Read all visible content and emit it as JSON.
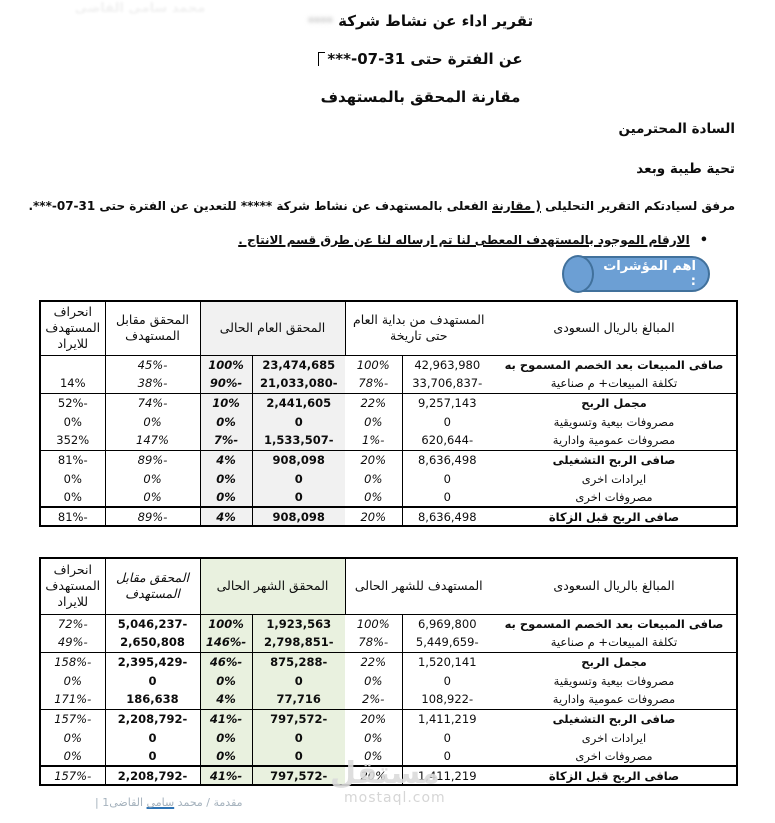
{
  "document": {
    "watermark_top": "محمد سامى القاضى",
    "title_line1": "تقرير اداء عن نشاط شركة",
    "title_redacted": "****",
    "title_line2": "عن الفترة حتى 31-07-***",
    "title_line3": "مقارنة المحقق بالمستهدف",
    "greeting_line1": "السادة المحترمين",
    "greeting_line2": "تحية طيبة وبعد",
    "intro_pre": "مرفق لسيادتكم التقرير التحليلى ",
    "intro_underlined": "( مقارنة",
    "intro_post": " الفعلى بالمستهدف عن نشاط شركة ***** للتعدين عن الفترة حتى 31-07-***.",
    "bullet_marker": "•",
    "bullet_text": "الارقام الموجود بالمستهدف المعطى لنا تم ارساله لنا  عن طرق قسم الانتاج .",
    "indicators_badge": "اهم المؤشرات :",
    "footer_pre": "مقدمة / محمد ",
    "footer_name": "سامى",
    "footer_post": " القاضى1 |",
    "watermark_brand_arabic": "مستقل",
    "watermark_brand_domain": "mostaql.com"
  },
  "colors": {
    "badge_fill": "#6c9fd4",
    "badge_border": "#41719c",
    "achieved_highlight_yearly": "#f1f1f1",
    "achieved_highlight_monthly": "#e9f1df",
    "footer_text": "#a5b2bd",
    "footer_link_underline": "#2e74b5",
    "watermark_gray": "#dbdbdb"
  },
  "tables": [
    {
      "name": "yearly-comparison",
      "headers": {
        "label": "المبالغ بالريال السعودى",
        "target": "المستهدف من بداية العام حتى تاريخة",
        "achieved": "المحقق العام الحالى",
        "vs": "المحقق مقابل المستهدف",
        "deviation": "انحراف المستهدف للايراد"
      },
      "rows": [
        {
          "label": "صافى المبيعات بعد الخصم المسموح به",
          "bold": true,
          "target": "42,963,980",
          "target_pct": "100%",
          "achieved": "23,474,685",
          "achieved_pct": "100%",
          "vs": "-45%",
          "dev": ""
        },
        {
          "label": "تكلفة المبيعات+ م صناعية",
          "bold": false,
          "target": "-33,706,837",
          "target_pct": "-78%",
          "achieved": "-21,033,080",
          "achieved_pct": "-90%",
          "vs": "-38%",
          "dev": "14%"
        },
        {
          "label": "مجمل الربح",
          "bold": true,
          "sep": true,
          "target": "9,257,143",
          "target_pct": "22%",
          "achieved": "2,441,605",
          "achieved_pct": "10%",
          "vs": "-74%",
          "dev": "-52%"
        },
        {
          "label": "مصروفات بيعية وتسويقية",
          "bold": false,
          "target": "0",
          "target_pct": "0%",
          "achieved": "0",
          "achieved_pct": "0%",
          "vs": "0%",
          "dev": "0%"
        },
        {
          "label": "مصروفات عمومية وادارية",
          "bold": false,
          "target": "-620,644",
          "target_pct": "-1%",
          "achieved": "-1,533,507",
          "achieved_pct": "-7%",
          "vs": "147%",
          "dev": "352%"
        },
        {
          "label": "صافى الربح التشغيلى",
          "bold": true,
          "sep": true,
          "target": "8,636,498",
          "target_pct": "20%",
          "achieved": "908,098",
          "achieved_pct": "4%",
          "vs": "-89%",
          "dev": "-81%"
        },
        {
          "label": "ايرادات اخرى",
          "bold": false,
          "target": "0",
          "target_pct": "0%",
          "achieved": "0",
          "achieved_pct": "0%",
          "vs": "0%",
          "dev": "0%"
        },
        {
          "label": "مصروفات اخرى",
          "bold": false,
          "target": "0",
          "target_pct": "0%",
          "achieved": "0",
          "achieved_pct": "0%",
          "vs": "0%",
          "dev": "0%"
        },
        {
          "label": "صافى الربح قبل الزكاة",
          "bold": true,
          "final": true,
          "target": "8,636,498",
          "target_pct": "20%",
          "achieved": "908,098",
          "achieved_pct": "4%",
          "vs": "-89%",
          "dev": "-81%"
        }
      ]
    },
    {
      "name": "monthly-comparison",
      "headers": {
        "label": "المبالغ بالريال السعودى",
        "target": "المستهدف للشهر الحالى",
        "achieved": "المحقق الشهر الحالى",
        "vs": "المحقق مقابل المستهدف",
        "deviation": "انحراف المستهدف للايراد"
      },
      "rows": [
        {
          "label": "صافى المبيعات بعد الخصم المسموح به",
          "bold": true,
          "target": "6,969,800",
          "target_pct": "100%",
          "achieved": "1,923,563",
          "achieved_pct": "100%",
          "vs": "-5,046,237",
          "dev": "-72%"
        },
        {
          "label": "تكلفة المبيعات+ م صناعية",
          "bold": false,
          "target": "-5,449,659",
          "target_pct": "-78%",
          "achieved": "-2,798,851",
          "achieved_pct": "-146%",
          "vs": "2,650,808",
          "dev": "-49%"
        },
        {
          "label": "مجمل الربح",
          "bold": true,
          "sep": true,
          "target": "1,520,141",
          "target_pct": "22%",
          "achieved": "-875,288",
          "achieved_pct": "-46%",
          "vs": "-2,395,429",
          "dev": "-158%"
        },
        {
          "label": "مصروفات بيعية وتسويقية",
          "bold": false,
          "target": "0",
          "target_pct": "0%",
          "achieved": "0",
          "achieved_pct": "0%",
          "vs": "0",
          "dev": "0%"
        },
        {
          "label": "مصروفات عمومية وادارية",
          "bold": false,
          "target": "-108,922",
          "target_pct": "-2%",
          "achieved": "77,716",
          "achieved_pct": "4%",
          "vs": "186,638",
          "dev": "-171%"
        },
        {
          "label": "صافى الربح التشغيلى",
          "bold": true,
          "sep": true,
          "target": "1,411,219",
          "target_pct": "20%",
          "achieved": "-797,572",
          "achieved_pct": "-41%",
          "vs": "-2,208,792",
          "dev": "-157%"
        },
        {
          "label": "ايرادات اخرى",
          "bold": false,
          "target": "0",
          "target_pct": "0%",
          "achieved": "0",
          "achieved_pct": "0%",
          "vs": "0",
          "dev": "0%"
        },
        {
          "label": "مصروفات اخرى",
          "bold": false,
          "target": "0",
          "target_pct": "0%",
          "achieved": "0",
          "achieved_pct": "0%",
          "vs": "0",
          "dev": "0%"
        },
        {
          "label": "صافى الربح قبل الزكاة",
          "bold": true,
          "final": true,
          "target": "1,411,219",
          "target_pct": "20%",
          "achieved": "-797,572",
          "achieved_pct": "-41%",
          "vs": "-2,208,792",
          "dev": "-157%"
        }
      ]
    }
  ]
}
